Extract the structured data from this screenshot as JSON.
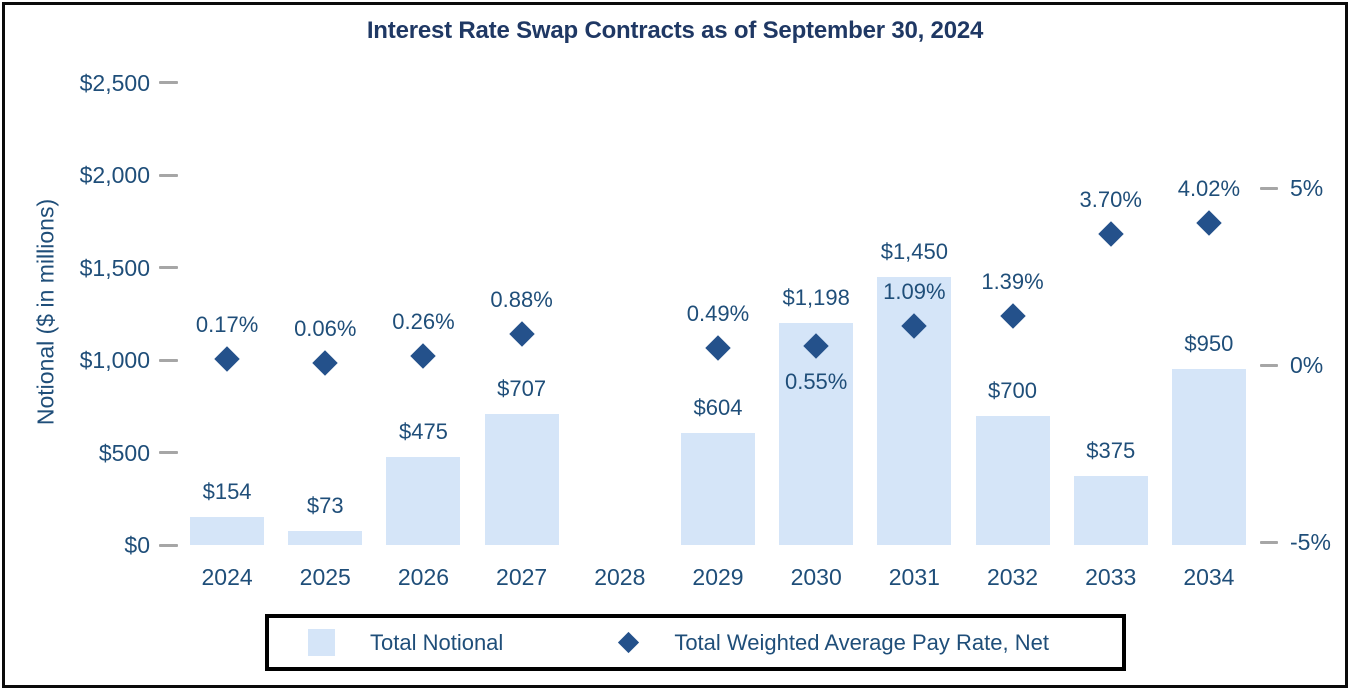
{
  "page_title": "Interest Rate Swap Contracts as of September 30, 2024",
  "colors": {
    "title_text": "#1F3864",
    "axis_text": "#1F4E79",
    "bar_fill": "#D5E5F8",
    "marker_fill": "#24518B",
    "tick_mark": "#A6A6A6",
    "border": "#000000"
  },
  "chart_data": {
    "type": "bar",
    "title": "Interest Rate Swap Contracts as of September 30, 2024",
    "categories": [
      "2024",
      "2025",
      "2026",
      "2027",
      "2028",
      "2029",
      "2030",
      "2031",
      "2032",
      "2033",
      "2034"
    ],
    "series": [
      {
        "name": "Total Notional",
        "type": "bar",
        "axis": "left",
        "values": [
          154,
          73,
          475,
          707,
          null,
          604,
          1198,
          1450,
          700,
          375,
          950
        ],
        "labels": [
          "$154",
          "$73",
          "$475",
          "$707",
          null,
          "$604",
          "$1,198",
          "$1,450",
          "$700",
          "$375",
          "$950"
        ],
        "color": "#D5E5F8"
      },
      {
        "name": "Total Weighted Average Pay Rate, Net",
        "type": "scatter",
        "marker": "diamond",
        "axis": "right",
        "values": [
          0.17,
          0.06,
          0.26,
          0.88,
          null,
          0.49,
          0.55,
          1.09,
          1.39,
          3.7,
          4.02
        ],
        "labels": [
          "0.17%",
          "0.06%",
          "0.26%",
          "0.88%",
          null,
          "0.49%",
          "0.55%",
          "1.09%",
          "1.39%",
          "3.70%",
          "4.02%"
        ],
        "label_side": [
          "above",
          "above",
          "above",
          "above",
          null,
          "above",
          "below",
          "above",
          "above",
          "above",
          "above"
        ],
        "color": "#24518B"
      }
    ],
    "left_axis": {
      "label": "Notional ($ in millions)",
      "range": [
        0,
        2500
      ],
      "ticks": [
        {
          "value": 0,
          "label": "$0"
        },
        {
          "value": 500,
          "label": "$500"
        },
        {
          "value": 1000,
          "label": "$1,000"
        },
        {
          "value": 1500,
          "label": "$1,500"
        },
        {
          "value": 2000,
          "label": "$2,000"
        },
        {
          "value": 2500,
          "label": "$2,500"
        }
      ]
    },
    "right_axis": {
      "label": "",
      "range": [
        -5,
        5
      ],
      "ticks": [
        {
          "value": -5,
          "label": "-5%"
        },
        {
          "value": 0,
          "label": "0%"
        },
        {
          "value": 5,
          "label": "5%"
        }
      ]
    },
    "legend": {
      "position": "bottom",
      "entries": [
        "Total Notional",
        "Total Weighted Average Pay Rate, Net"
      ]
    },
    "grid": false
  }
}
